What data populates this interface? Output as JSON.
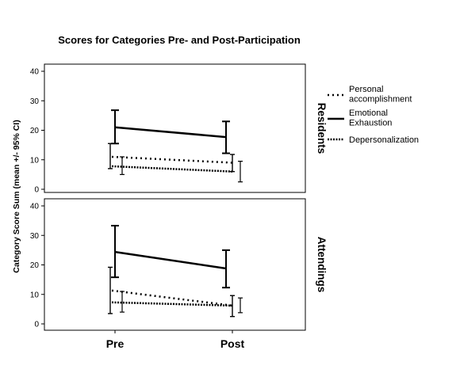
{
  "chart_data": {
    "type": "line",
    "title": "Scores for Categories Pre- and Post-Participation",
    "ylabel": "Category Score Sum (mean +/- 95% CI)",
    "xlabel": "",
    "categories": [
      "Pre",
      "Post"
    ],
    "ylim": [
      0,
      40
    ],
    "yticks": [
      0,
      10,
      20,
      30,
      40
    ],
    "grid": false,
    "legend_position": "right",
    "series_styles": [
      {
        "name": "Personal accomplishment",
        "legend_lines": [
          "Personal",
          "accomplishment"
        ],
        "dash": "dotted"
      },
      {
        "name": "Emotional Exhaustion",
        "legend_lines": [
          "Emotional",
          "Exhaustion"
        ],
        "dash": "solid"
      },
      {
        "name": "Depersonalization",
        "legend_lines": [
          "Depersonalization"
        ],
        "dash": "dense-dotted"
      }
    ],
    "panels": [
      {
        "label": "Residents",
        "series": [
          {
            "name": "Personal accomplishment",
            "values": [
              11,
              9
            ],
            "ci_low": [
              5,
              2.5
            ],
            "ci_high": [
              11,
              9.5
            ]
          },
          {
            "name": "Emotional Exhaustion",
            "values": [
              21,
              17.7
            ],
            "ci_low": [
              15.5,
              12.2
            ],
            "ci_high": [
              26.8,
              23
            ]
          },
          {
            "name": "Depersonalization",
            "values": [
              7.8,
              6
            ],
            "ci_low": [
              7,
              6
            ],
            "ci_high": [
              15.5,
              11.8
            ]
          }
        ]
      },
      {
        "label": "Attendings",
        "series": [
          {
            "name": "Personal accomplishment",
            "values": [
              11.3,
              6.2
            ],
            "ci_low": [
              4,
              3.8
            ],
            "ci_high": [
              11,
              8.8
            ]
          },
          {
            "name": "Emotional Exhaustion",
            "values": [
              24.4,
              18.8
            ],
            "ci_low": [
              15.8,
              12.3
            ],
            "ci_high": [
              33.3,
              25
            ]
          },
          {
            "name": "Depersonalization",
            "values": [
              7.3,
              6.2
            ],
            "ci_low": [
              3.5,
              2.5
            ],
            "ci_high": [
              19.2,
              9.6
            ]
          }
        ]
      }
    ]
  },
  "colors": {
    "ink": "#000000",
    "background": "#ffffff"
  }
}
